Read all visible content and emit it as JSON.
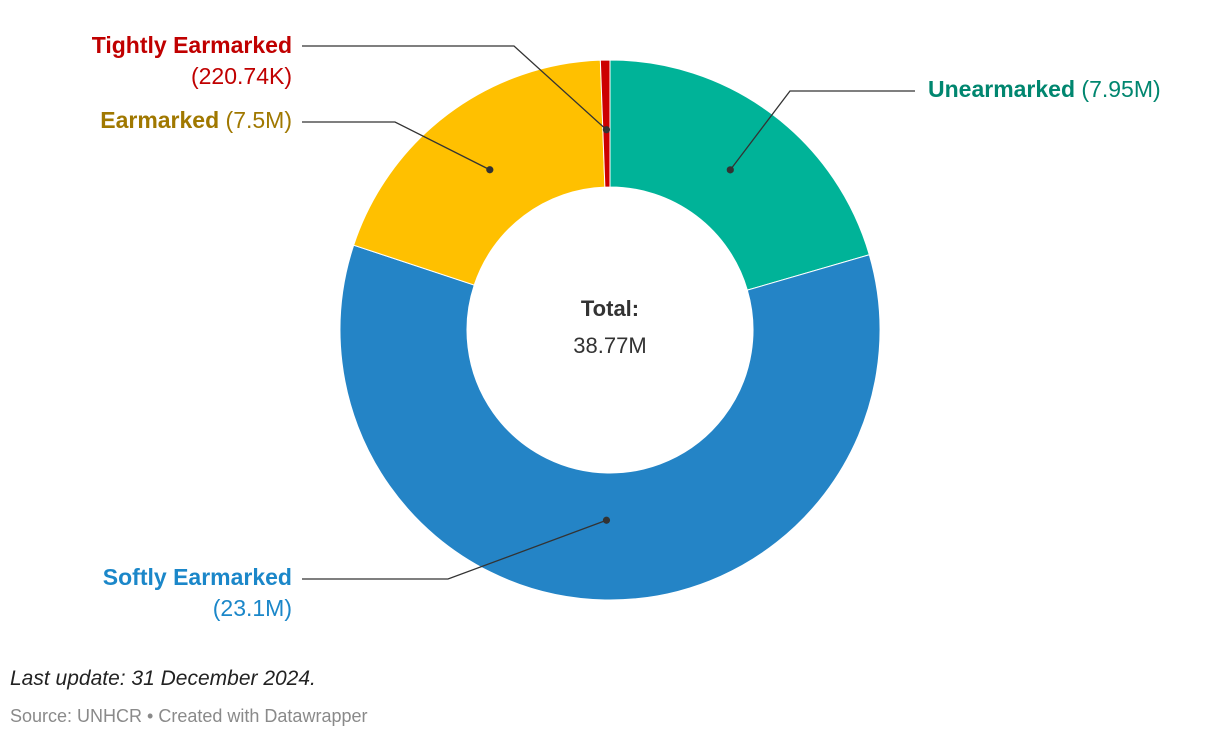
{
  "chart_data": {
    "type": "pie",
    "variant": "donut",
    "total_label": "Total:",
    "total_value": "38.77M",
    "slices": [
      {
        "name": "Unearmarked",
        "value": 7.95,
        "value_label": "(7.95M)",
        "color": "#00b398",
        "text_color": "#00866f",
        "label_side": "right",
        "label_lines": 1
      },
      {
        "name": "Softly Earmarked",
        "value": 23.1,
        "value_label": "(23.1M)",
        "color": "#2484c6",
        "text_color": "#1b87c9",
        "label_side": "left",
        "label_lines": 2
      },
      {
        "name": "Earmarked",
        "value": 7.5,
        "value_label": "(7.5M)",
        "color": "#ffc000",
        "text_color": "#a07800",
        "label_side": "left",
        "label_lines": 1
      },
      {
        "name": "Tightly Earmarked",
        "value": 0.22074,
        "value_label": "(220.74K)",
        "color": "#cc0000",
        "text_color": "#c00000",
        "label_side": "left",
        "label_lines": 2
      }
    ]
  },
  "footer": {
    "update_text": "Last update: 31 December 2024.",
    "source": "Source: UNHCR",
    "separator": "•",
    "credit": "Created with Datawrapper"
  },
  "colors": {
    "leader_line": "#333333",
    "total_text": "#333333"
  }
}
